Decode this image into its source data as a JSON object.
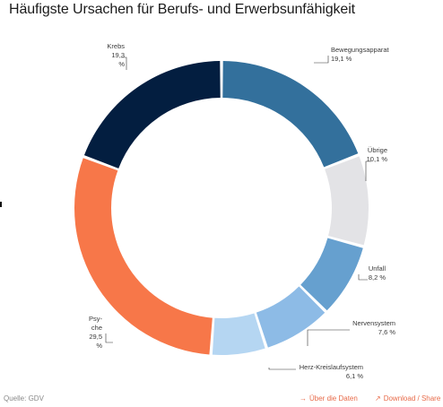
{
  "title": "Häufigste Ursachen für Berufs- und Erwerbsunfähigkeit",
  "footer": {
    "source": "Quelle: GDV",
    "about_label": "Über die Daten",
    "download_label": "Download / Share",
    "accent_color": "#e86b4a"
  },
  "chart_data": {
    "type": "pie",
    "title": "Häufigste Ursachen für Berufs- und Erwerbsunfähigkeit",
    "donut": true,
    "slices": [
      {
        "label": "Bewegungsapparat",
        "value": 19.1,
        "value_label": "19,1 %",
        "color": "#33709c"
      },
      {
        "label": "Übrige",
        "value": 10.1,
        "value_label": "10,1 %",
        "color": "#e3e3e6"
      },
      {
        "label": "Unfall",
        "value": 8.2,
        "value_label": "8,2 %",
        "color": "#66a0cf"
      },
      {
        "label": "Nervensystem",
        "value": 7.6,
        "value_label": "7,6 %",
        "color": "#8dbbe6"
      },
      {
        "label": "Herz-Kreislaufsystem",
        "value": 6.1,
        "value_label": "6,1 %",
        "color": "#b5d6f2"
      },
      {
        "label": "Psy- che",
        "value": 29.5,
        "value_label": "29,5 %",
        "color": "#f77749"
      },
      {
        "label": "Krebs",
        "value": 19.3,
        "value_label": "19,3 %",
        "color": "#031e40"
      }
    ]
  }
}
